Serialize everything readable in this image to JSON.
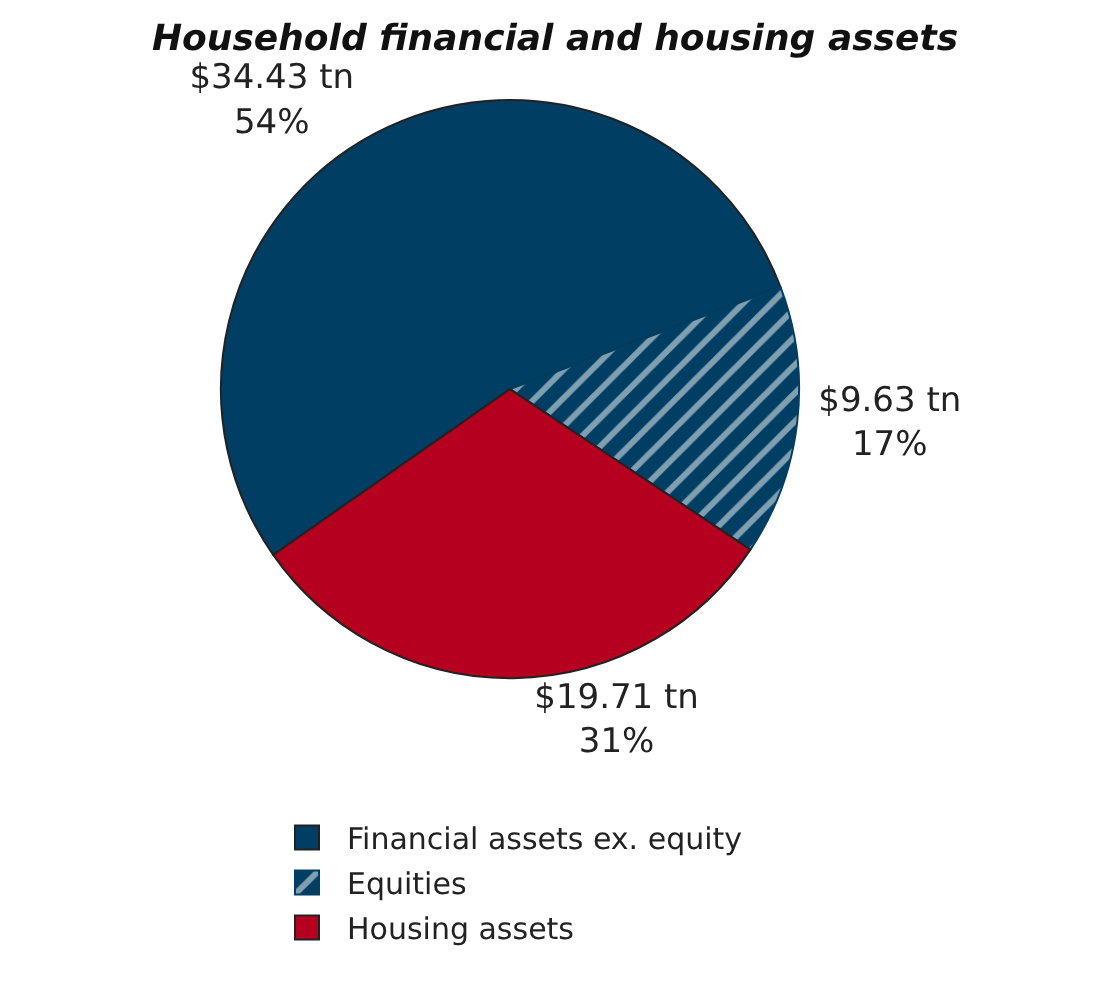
{
  "chart_data": {
    "type": "pie",
    "title": "Household financial and housing assets",
    "categories": [
      "Financial assets ex. equity",
      "Equities",
      "Housing assets"
    ],
    "values": [
      34.43,
      9.63,
      19.71
    ],
    "colors": [
      "#003f63",
      "#003f63",
      "#b5001f"
    ],
    "value_labels": [
      "$34.43 tn\n54%",
      "$9.63 tn\n17%",
      "$19.71 tn\n31%"
    ],
    "legend": "bottom"
  }
}
